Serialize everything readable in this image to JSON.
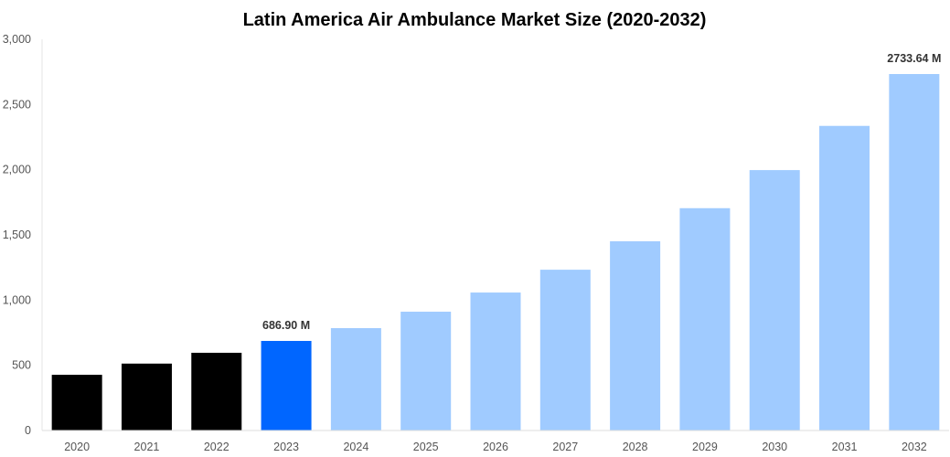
{
  "chart_data": {
    "type": "bar",
    "title": "Latin America Air Ambulance Market Size (2020-2032)",
    "xlabel": "",
    "ylabel": "",
    "ylim": [
      0,
      3000
    ],
    "yticks": [
      0,
      500,
      1000,
      1500,
      2000,
      2500,
      3000
    ],
    "ytick_labels": [
      "0",
      "500",
      "1,000",
      "1,500",
      "2,000",
      "2,500",
      "3,000"
    ],
    "grid": false,
    "categories": [
      "2020",
      "2021",
      "2022",
      "2023",
      "2024",
      "2025",
      "2026",
      "2027",
      "2028",
      "2029",
      "2030",
      "2031",
      "2032"
    ],
    "values": [
      427,
      513,
      596,
      686.9,
      785,
      911,
      1058,
      1233,
      1451,
      1705,
      1997,
      2336,
      2733.64
    ],
    "bar_colors": [
      "#000000",
      "#000000",
      "#000000",
      "#0066ff",
      "#a0cbff",
      "#a0cbff",
      "#a0cbff",
      "#a0cbff",
      "#a0cbff",
      "#a0cbff",
      "#a0cbff",
      "#a0cbff",
      "#a0cbff"
    ],
    "data_labels": [
      {
        "category": "2023",
        "text": "686.90 M"
      },
      {
        "category": "2032",
        "text": "2733.64 M"
      }
    ]
  }
}
